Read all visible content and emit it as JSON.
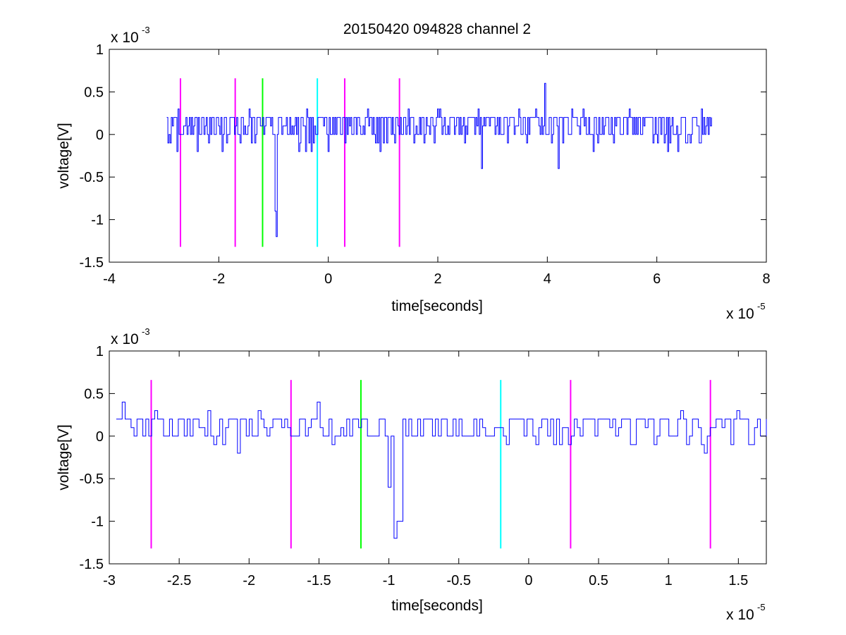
{
  "title": "20150420 094828 channel 2",
  "chart_data": [
    {
      "type": "line",
      "xlabel": "time[seconds]",
      "ylabel": "voltage[V]",
      "x_multiplier": "x 10",
      "x_exponent": "-5",
      "y_multiplier": "x 10",
      "y_exponent": "-3",
      "xlim": [
        -4,
        8
      ],
      "ylim": [
        -1.5,
        1
      ],
      "xticks": [
        -4,
        -2,
        0,
        2,
        4,
        6,
        8
      ],
      "xtick_labels": [
        "-4",
        "-2",
        "0",
        "2",
        "4",
        "6",
        "8"
      ],
      "yticks": [
        -1.5,
        -1,
        -0.5,
        0,
        0.5,
        1
      ],
      "ytick_labels": [
        "-1.5",
        "-1",
        "-0.5",
        "0",
        "0.5",
        "1"
      ],
      "grid": false,
      "series": [
        {
          "color": "#0000ff",
          "x_range": [
            -2.95,
            7.0
          ],
          "baseline_levels": [
            0.0,
            0.1,
            0.2
          ],
          "notable_points": [
            {
              "x": -0.98,
              "y": -0.9
            },
            {
              "x": -0.95,
              "y": -1.2
            },
            {
              "x": 2.8,
              "y": -0.4
            },
            {
              "x": 3.95,
              "y": 0.6
            },
            {
              "x": 4.2,
              "y": -0.4
            }
          ]
        }
      ],
      "markers": [
        {
          "x": -2.7,
          "color": "#ff00ff"
        },
        {
          "x": -1.7,
          "color": "#ff00ff"
        },
        {
          "x": -1.2,
          "color": "#00ff00"
        },
        {
          "x": -0.2,
          "color": "#00ffff"
        },
        {
          "x": 0.3,
          "color": "#ff00ff"
        },
        {
          "x": 1.3,
          "color": "#ff00ff"
        }
      ],
      "marker_ylim": [
        -1.32,
        0.66
      ]
    },
    {
      "type": "line",
      "xlabel": "time[seconds]",
      "ylabel": "voltage[V]",
      "x_multiplier": "x 10",
      "x_exponent": "-5",
      "y_multiplier": "x 10",
      "y_exponent": "-3",
      "xlim": [
        -3.0,
        1.7
      ],
      "ylim": [
        -1.5,
        1
      ],
      "xticks": [
        -3,
        -2.5,
        -2,
        -1.5,
        -1,
        -0.5,
        0,
        0.5,
        1,
        1.5
      ],
      "xtick_labels": [
        "-3",
        "-2.5",
        "-2",
        "-1.5",
        "-1",
        "-0.5",
        "0",
        "0.5",
        "1",
        "1.5"
      ],
      "yticks": [
        -1.5,
        -1,
        -0.5,
        0,
        0.5,
        1
      ],
      "ytick_labels": [
        "-1.5",
        "-1",
        "-0.5",
        "0",
        "0.5",
        "1"
      ],
      "grid": false,
      "series": [
        {
          "color": "#0000ff",
          "x_range": [
            -2.95,
            1.7
          ],
          "baseline_levels": [
            0.0,
            0.1,
            0.2
          ],
          "notable_points": [
            {
              "x": -2.9,
              "y": 0.4
            },
            {
              "x": -1.52,
              "y": 0.4
            },
            {
              "x": -1.0,
              "y": -0.6
            },
            {
              "x": -0.97,
              "y": -1.2
            },
            {
              "x": -0.93,
              "y": -1.0
            }
          ]
        }
      ],
      "markers": [
        {
          "x": -2.7,
          "color": "#ff00ff"
        },
        {
          "x": -1.7,
          "color": "#ff00ff"
        },
        {
          "x": -1.2,
          "color": "#00ff00"
        },
        {
          "x": -0.2,
          "color": "#00ffff"
        },
        {
          "x": 0.3,
          "color": "#ff00ff"
        },
        {
          "x": 1.3,
          "color": "#ff00ff"
        }
      ],
      "marker_ylim": [
        -1.32,
        0.66
      ]
    }
  ]
}
